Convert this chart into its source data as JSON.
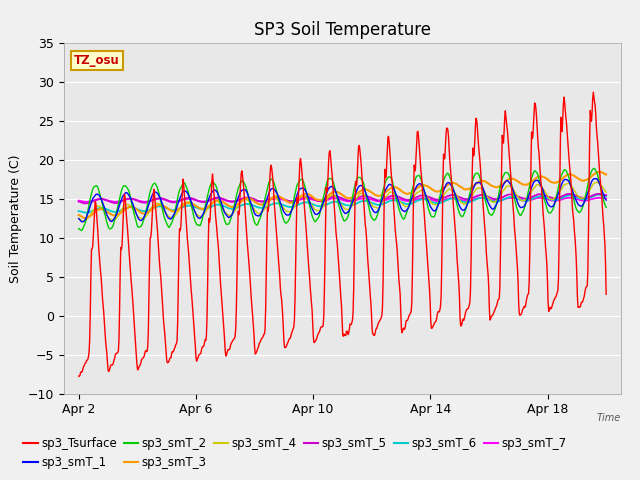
{
  "title": "SP3 Soil Temperature",
  "xlabel": "",
  "ylabel": "Soil Temperature (C)",
  "ylim": [
    -10,
    35
  ],
  "yticks": [
    -10,
    -5,
    0,
    5,
    10,
    15,
    20,
    25,
    30,
    35
  ],
  "xtick_labels": [
    "Apr 2",
    "Apr 6",
    "Apr 10",
    "Apr 14",
    "Apr 18"
  ],
  "xtick_positions": [
    2,
    6,
    10,
    14,
    18
  ],
  "xlim": [
    1.5,
    20.5
  ],
  "plot_bg_color": "#e8e8e8",
  "fig_bg_color": "#f0f0f0",
  "label_box_color": "#ffffcc",
  "label_box_border": "#cc9900",
  "label_text": "TZ_osu",
  "label_text_color": "#cc0000",
  "series_colors": {
    "sp3_Tsurface": "#ff0000",
    "sp3_smT_1": "#0000ff",
    "sp3_smT_2": "#00cc00",
    "sp3_smT_3": "#ff9900",
    "sp3_smT_4": "#cccc00",
    "sp3_smT_5": "#cc00cc",
    "sp3_smT_6": "#00cccc",
    "sp3_smT_7": "#ff00ff"
  },
  "title_fontsize": 12,
  "axis_fontsize": 9,
  "tick_fontsize": 9,
  "legend_fontsize": 8.5
}
